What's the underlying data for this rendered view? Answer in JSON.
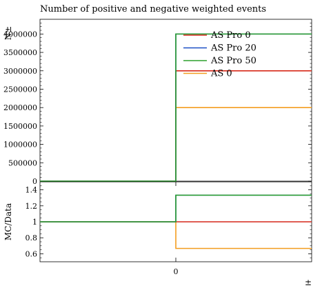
{
  "chart_data": {
    "type": "line",
    "title": "Number of positive and negative weighted events",
    "main_panel": {
      "ylabel": "N±",
      "ylim": [
        0,
        4400000
      ],
      "yticks": [
        0,
        500000,
        1000000,
        1500000,
        2000000,
        2500000,
        3000000,
        3500000,
        4000000
      ],
      "ytick_labels": [
        "0",
        "500000",
        "1000000",
        "1500000",
        "2000000",
        "2500000",
        "3000000",
        "3500000",
        "4000000"
      ]
    },
    "ratio_panel": {
      "ylabel": "MC/Data",
      "ylim": [
        0.5,
        1.5
      ],
      "yticks": [
        0.6,
        0.8,
        1,
        1.2,
        1.4
      ],
      "ytick_labels": [
        "0.6",
        "0.8",
        "1",
        "1.2",
        "1.4"
      ],
      "reference_line": 1
    },
    "xlabel": "±",
    "xlim": [
      -1,
      1
    ],
    "xticks": [
      0
    ],
    "xtick_labels": [
      "0"
    ],
    "bins": [
      [
        -1,
        0
      ],
      [
        0,
        1
      ]
    ],
    "legend_position": "top-right",
    "series": [
      {
        "name": "AS Pro 0",
        "color": "#d62718",
        "values": [
          0,
          3000000
        ],
        "ratio": [
          1,
          1.0
        ]
      },
      {
        "name": "AS Pro 20",
        "color": "#1a4fc6",
        "values": [
          0,
          4000000
        ],
        "ratio": [
          1,
          1.333
        ]
      },
      {
        "name": "AS Pro 50",
        "color": "#2ca02c",
        "values": [
          0,
          4000000
        ],
        "ratio": [
          1,
          1.333
        ]
      },
      {
        "name": "AS 0",
        "color": "#f39c1e",
        "values": [
          0,
          2000000
        ],
        "ratio": [
          1,
          0.667
        ]
      }
    ]
  }
}
